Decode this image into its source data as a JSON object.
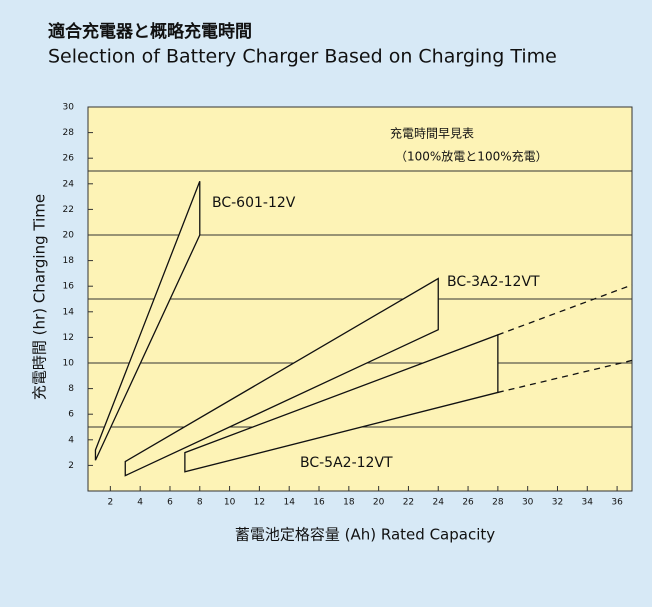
{
  "chart_data": {
    "type": "polygon",
    "title": "適合充電器と概略充電時間",
    "subtitle": "Selection of Battery Charger Based on Charging Time",
    "y_label": "充電時間  (hr)   Charging  Time",
    "x_label": "蓄電池定格容量  (Ah)   Rated  Capacity",
    "annotation": [
      "充電時間早見表",
      "（100%放電と100%充電）"
    ],
    "xlim": [
      0.5,
      37
    ],
    "ylim": [
      0,
      30
    ],
    "xticks": [
      2,
      4,
      6,
      8,
      10,
      12,
      14,
      16,
      18,
      20,
      22,
      24,
      26,
      28,
      30,
      32,
      34,
      36
    ],
    "yticks": [
      2,
      4,
      6,
      8,
      10,
      12,
      14,
      16,
      18,
      20,
      22,
      24,
      26,
      28,
      30
    ],
    "gridlines": [
      5,
      10,
      15,
      20,
      25
    ],
    "color": "#fdf3b6",
    "series": [
      {
        "name": "BC-601-12V",
        "x": [
          1,
          8,
          8,
          1
        ],
        "y": [
          3.2,
          24.2,
          20,
          2.4
        ]
      },
      {
        "name": "BC-3A2-12VT",
        "x": [
          3,
          3,
          24,
          24
        ],
        "y": [
          1.2,
          2.3,
          16.6,
          12.6
        ]
      },
      {
        "name": "BC-5A2-12VT",
        "x": [
          7,
          7,
          28,
          28
        ],
        "y": [
          1.5,
          3,
          12.2,
          7.7
        ]
      }
    ],
    "extensions": [
      {
        "x": [
          28,
          37
        ],
        "y": [
          12.2,
          16.1
        ]
      },
      {
        "x": [
          28,
          37
        ],
        "y": [
          7.7,
          10.2
        ]
      }
    ]
  }
}
